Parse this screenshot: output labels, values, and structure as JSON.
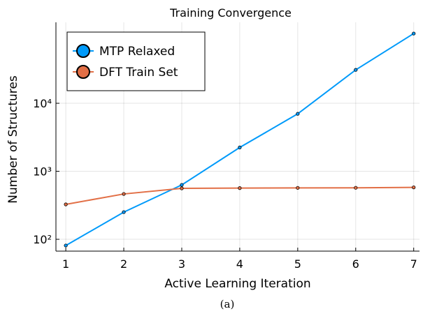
{
  "chart_data": {
    "type": "line",
    "title": "Training Convergence",
    "xlabel": "Active Learning Iteration",
    "ylabel": "Number of Structures",
    "caption": "(a)",
    "x": [
      1,
      2,
      3,
      4,
      5,
      6,
      7
    ],
    "series": [
      {
        "name": "MTP Relaxed",
        "color": "#009afa",
        "values": [
          81,
          251,
          630,
          2240,
          7000,
          31000,
          106000
        ]
      },
      {
        "name": "DFT Train Set",
        "color": "#e26f46",
        "values": [
          326,
          464,
          561,
          566,
          570,
          572,
          580
        ]
      }
    ],
    "xlim": [
      0.83,
      7.1
    ],
    "xticks": [
      1,
      2,
      3,
      4,
      5,
      6,
      7
    ],
    "ylim": [
      67,
      155000
    ],
    "yticks": [
      {
        "value": 100,
        "label": "10²"
      },
      {
        "value": 1000,
        "label": "10³"
      },
      {
        "value": 10000,
        "label": "10⁴"
      }
    ],
    "log_y": true,
    "grid": true,
    "legend": "top-left"
  }
}
